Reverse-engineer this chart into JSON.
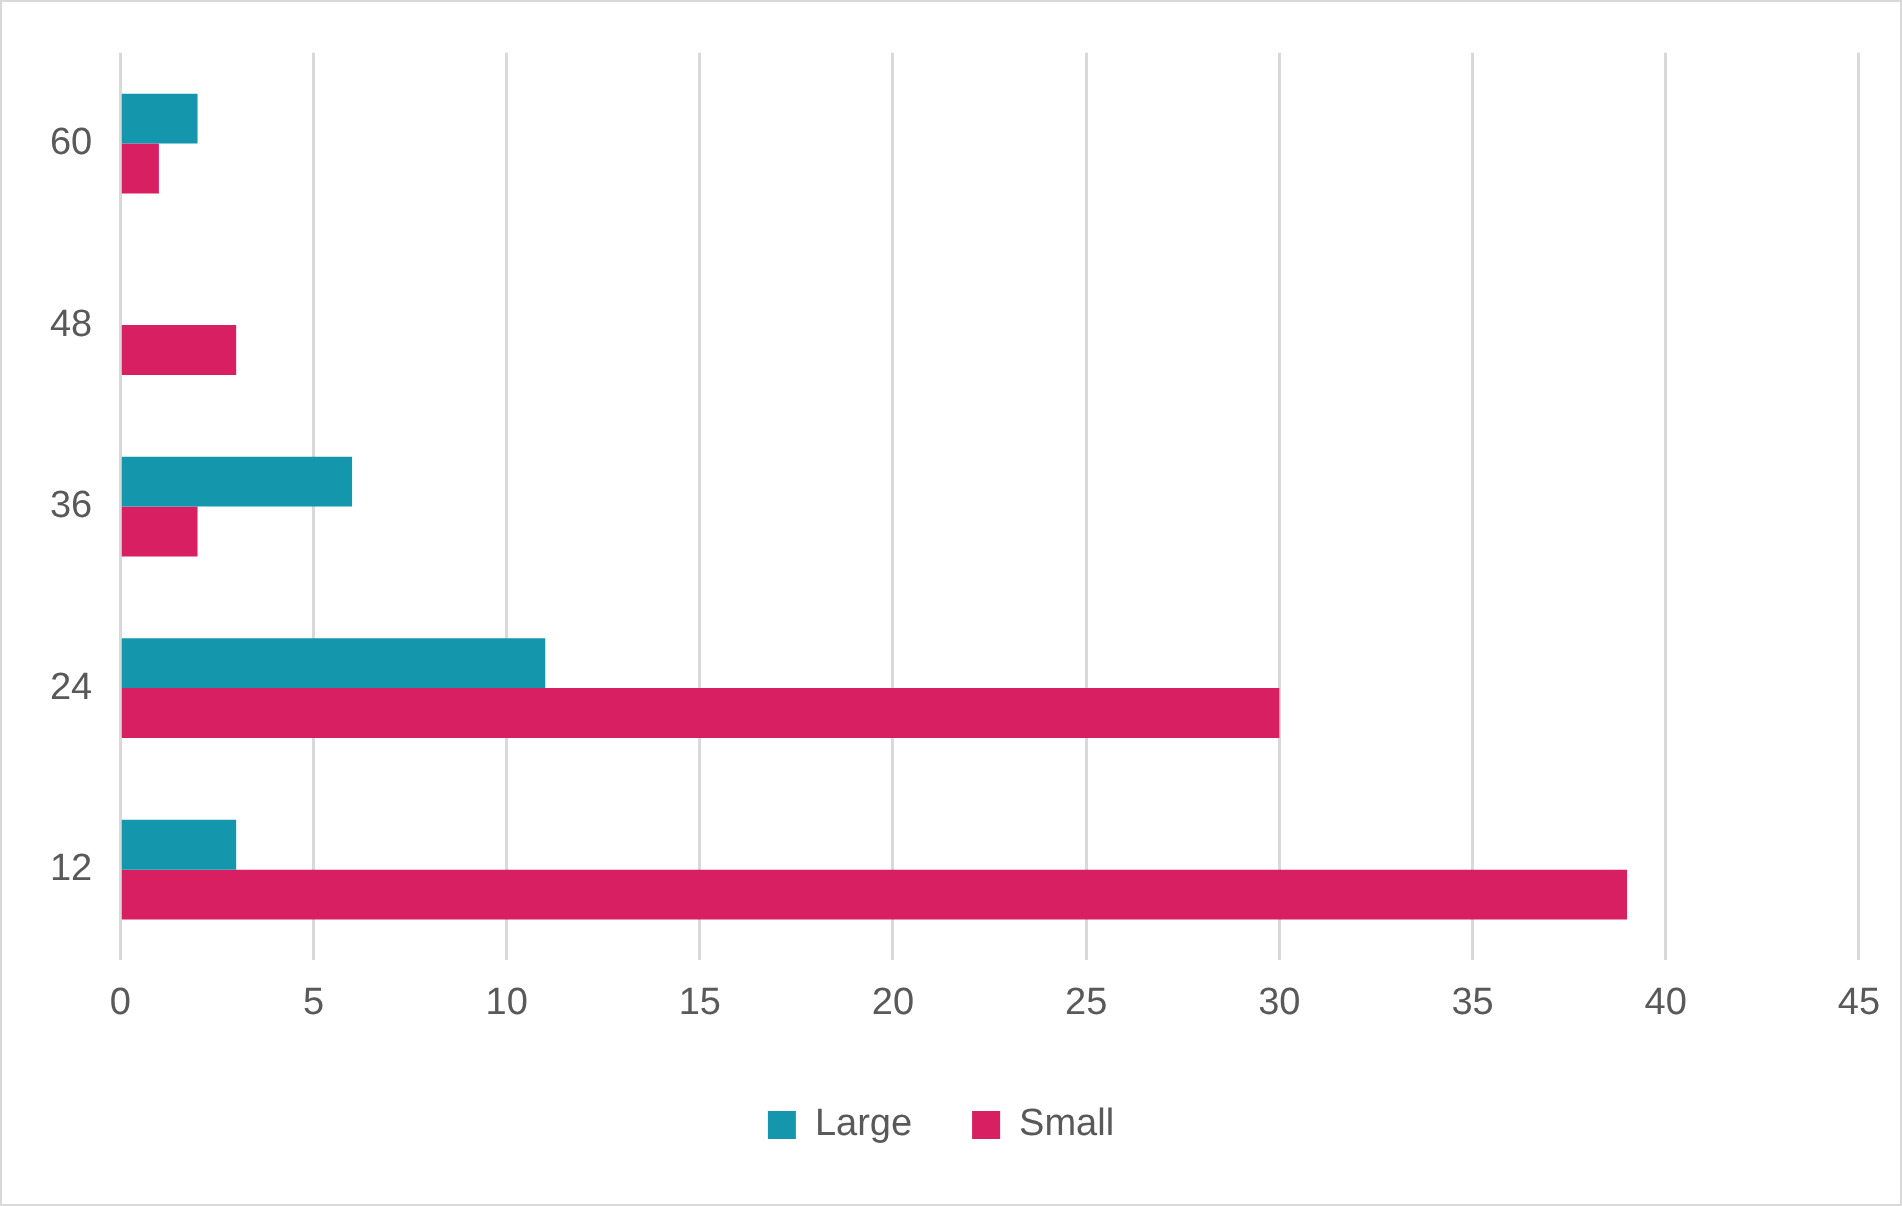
{
  "chart_data": {
    "type": "bar",
    "orientation": "horizontal",
    "categories": [
      "60",
      "48",
      "36",
      "24",
      "12"
    ],
    "series": [
      {
        "name": "Large",
        "color": "#1497ad",
        "values": [
          2,
          0,
          6,
          11,
          3
        ]
      },
      {
        "name": "Small",
        "color": "#d81f61",
        "values": [
          1,
          3,
          2,
          30,
          39
        ]
      }
    ],
    "xlim": [
      0,
      45
    ],
    "xticks": [
      0,
      5,
      10,
      15,
      20,
      25,
      30,
      35,
      40,
      45
    ],
    "grid": "x",
    "legend": "bottom"
  }
}
